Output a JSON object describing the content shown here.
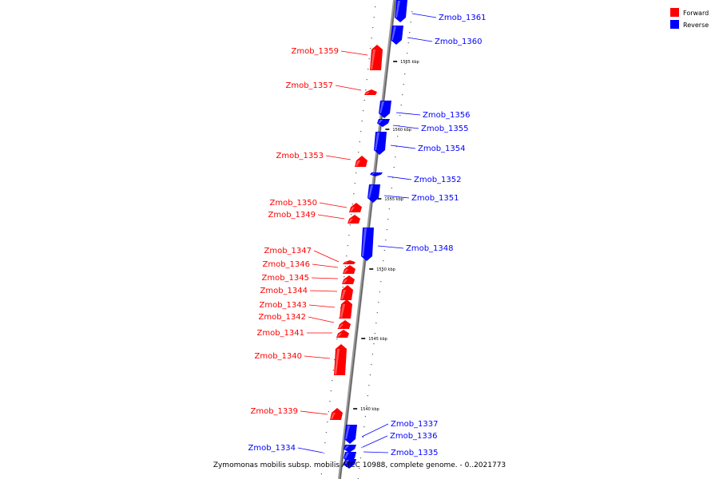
{
  "caption": "Zymomonas mobilis subsp. mobilis ATCC 10988, complete genome. - 0..2021773",
  "legend": [
    {
      "label": "Forward",
      "color": "#ff0000"
    },
    {
      "label": "Reverse",
      "color": "#0000ff"
    }
  ],
  "colors": {
    "forward": "#ff0000",
    "reverse": "#0000ff",
    "backbone": "#808080"
  },
  "ticks": [
    "1565 kbp",
    "1560 kbp",
    "1555 kbp",
    "1550 kbp",
    "1545 kbp",
    "1540 kbp"
  ],
  "genes": [
    {
      "name": "Zmob_1361",
      "strand": "reverse"
    },
    {
      "name": "Zmob_1360",
      "strand": "reverse"
    },
    {
      "name": "Zmob_1359",
      "strand": "forward"
    },
    {
      "name": "Zmob_1357",
      "strand": "forward"
    },
    {
      "name": "Zmob_1356",
      "strand": "reverse"
    },
    {
      "name": "Zmob_1355",
      "strand": "reverse"
    },
    {
      "name": "Zmob_1354",
      "strand": "reverse"
    },
    {
      "name": "Zmob_1353",
      "strand": "forward"
    },
    {
      "name": "Zmob_1352",
      "strand": "reverse"
    },
    {
      "name": "Zmob_1351",
      "strand": "reverse"
    },
    {
      "name": "Zmob_1350",
      "strand": "forward"
    },
    {
      "name": "Zmob_1349",
      "strand": "forward"
    },
    {
      "name": "Zmob_1348",
      "strand": "reverse"
    },
    {
      "name": "Zmob_1347",
      "strand": "forward"
    },
    {
      "name": "Zmob_1346",
      "strand": "forward"
    },
    {
      "name": "Zmob_1345",
      "strand": "forward"
    },
    {
      "name": "Zmob_1344",
      "strand": "forward"
    },
    {
      "name": "Zmob_1343",
      "strand": "forward"
    },
    {
      "name": "Zmob_1342",
      "strand": "forward"
    },
    {
      "name": "Zmob_1341",
      "strand": "forward"
    },
    {
      "name": "Zmob_1340",
      "strand": "forward"
    },
    {
      "name": "Zmob_1339",
      "strand": "forward"
    },
    {
      "name": "Zmob_1337",
      "strand": "reverse"
    },
    {
      "name": "Zmob_1336",
      "strand": "reverse"
    },
    {
      "name": "Zmob_1335",
      "strand": "reverse"
    },
    {
      "name": "Zmob_1334",
      "strand": "reverse"
    }
  ]
}
